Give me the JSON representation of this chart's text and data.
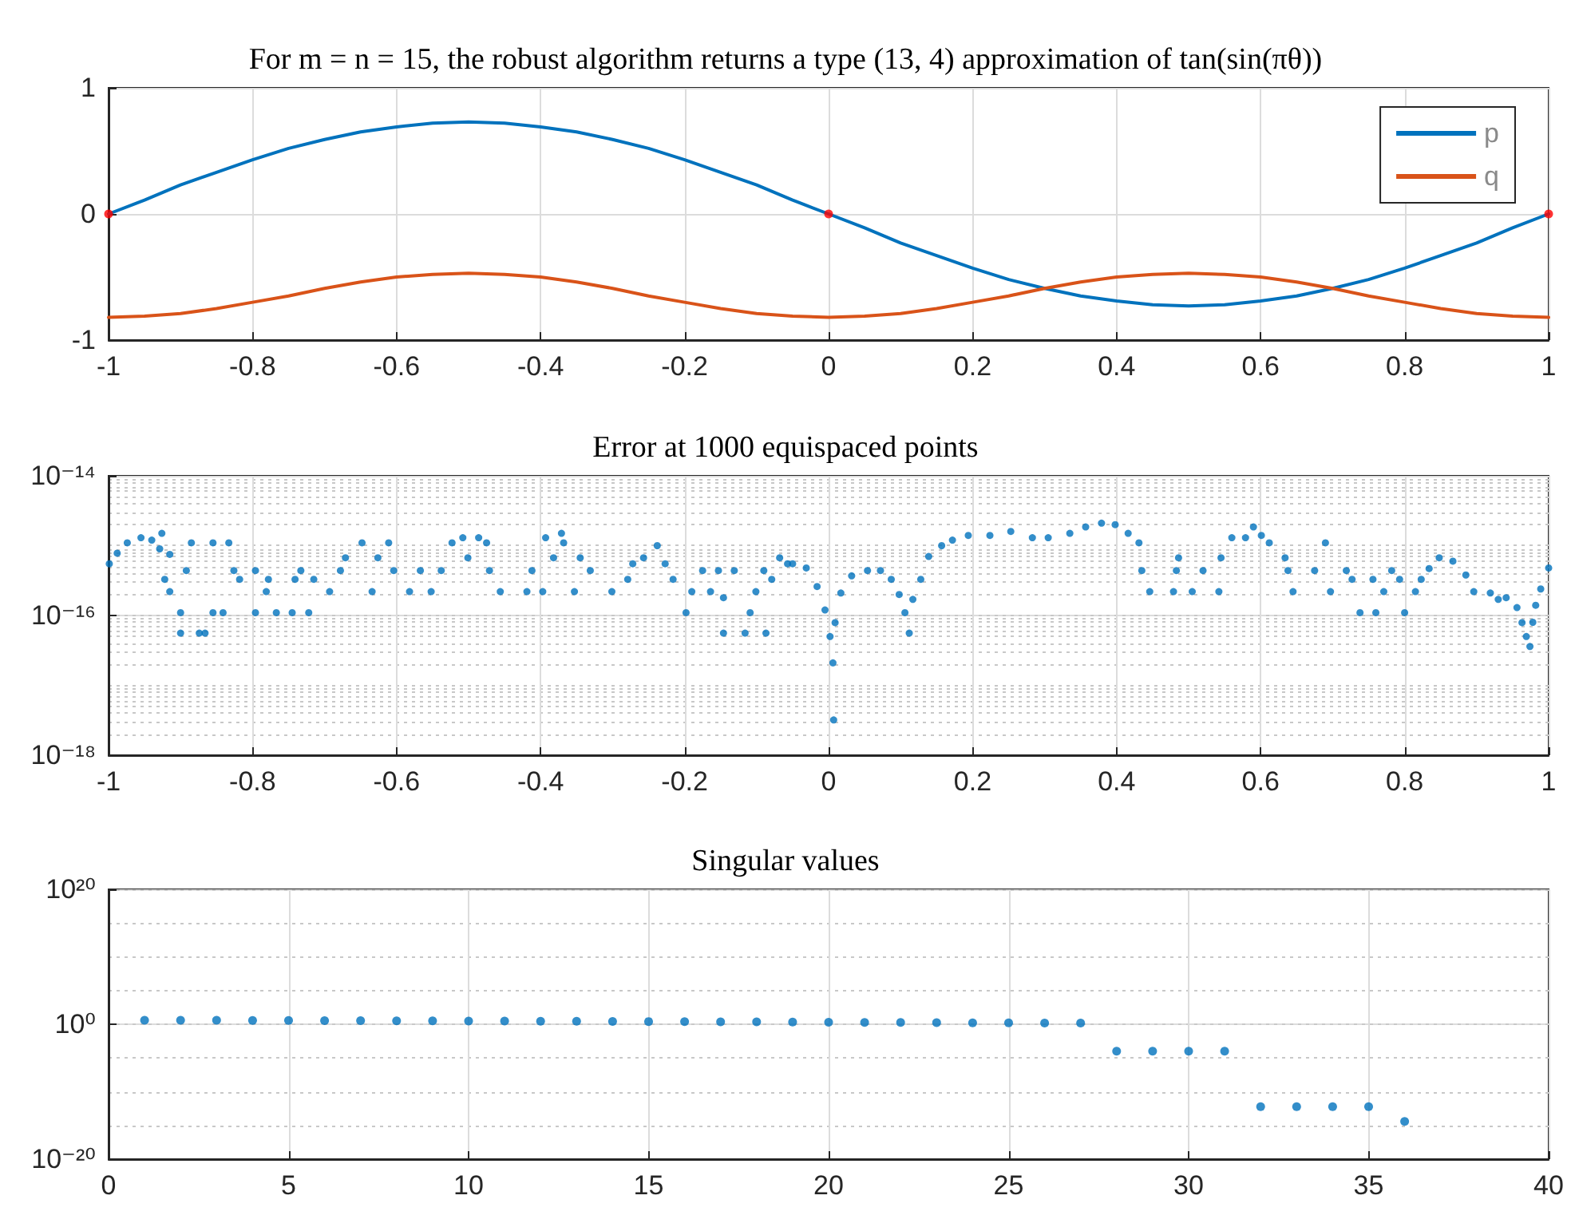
{
  "chart_data": [
    {
      "type": "line",
      "title": "For m = n = 15, the robust algorithm returns a type (13, 4) approximation of tan(sin(πθ))",
      "x": [
        -1,
        -0.95,
        -0.9,
        -0.85,
        -0.8,
        -0.75,
        -0.7,
        -0.65,
        -0.6,
        -0.55,
        -0.5,
        -0.45,
        -0.4,
        -0.35,
        -0.3,
        -0.25,
        -0.2,
        -0.15,
        -0.1,
        -0.05,
        0,
        0.05,
        0.1,
        0.15,
        0.2,
        0.25,
        0.3,
        0.35,
        0.4,
        0.45,
        0.5,
        0.55,
        0.6,
        0.65,
        0.7,
        0.75,
        0.8,
        0.85,
        0.9,
        0.95,
        1
      ],
      "series": [
        {
          "name": "p",
          "color": "#0072bd",
          "values": [
            0,
            0.11,
            0.23,
            0.33,
            0.43,
            0.52,
            0.59,
            0.65,
            0.69,
            0.72,
            0.73,
            0.72,
            0.69,
            0.65,
            0.59,
            0.52,
            0.43,
            0.33,
            0.23,
            0.11,
            0,
            -0.11,
            -0.23,
            -0.33,
            -0.43,
            -0.52,
            -0.59,
            -0.65,
            -0.69,
            -0.72,
            -0.73,
            -0.72,
            -0.69,
            -0.65,
            -0.59,
            -0.52,
            -0.43,
            -0.33,
            -0.23,
            -0.11,
            0
          ]
        },
        {
          "name": "q",
          "color": "#d95319",
          "values": [
            -0.82,
            -0.81,
            -0.79,
            -0.75,
            -0.7,
            -0.65,
            -0.59,
            -0.54,
            -0.5,
            -0.48,
            -0.47,
            -0.48,
            -0.5,
            -0.54,
            -0.59,
            -0.65,
            -0.7,
            -0.75,
            -0.79,
            -0.81,
            -0.82,
            -0.81,
            -0.79,
            -0.75,
            -0.7,
            -0.65,
            -0.59,
            -0.54,
            -0.5,
            -0.48,
            -0.47,
            -0.48,
            -0.5,
            -0.54,
            -0.59,
            -0.65,
            -0.7,
            -0.75,
            -0.79,
            -0.81,
            -0.82
          ]
        },
        {
          "type": "scatter",
          "color": "#ff0000",
          "marker": "circle",
          "x": [
            -1,
            0,
            1
          ],
          "values": [
            0,
            0,
            0
          ]
        }
      ],
      "xlim": [
        -1,
        1
      ],
      "xticks": [
        -1,
        -0.8,
        -0.6,
        -0.4,
        -0.2,
        0,
        0.2,
        0.4,
        0.6,
        0.8,
        1
      ],
      "ylim": [
        -1,
        1
      ],
      "yticks": [
        -1,
        0,
        1
      ],
      "grid": true,
      "legend": "top right",
      "marker": "none",
      "line_style": "solid"
    },
    {
      "type": "scatter",
      "title": "Error at 1000 equispaced points",
      "log": "y",
      "marker": "circle",
      "grid": true,
      "x": [
        -0.999,
        -0.988,
        -0.974,
        -0.955,
        -0.94,
        -0.929,
        -0.926,
        -0.922,
        -0.915,
        -0.915,
        -0.9,
        -0.9,
        -0.892,
        -0.885,
        -0.874,
        -0.866,
        -0.855,
        -0.855,
        -0.841,
        -0.833,
        -0.826,
        -0.818,
        -0.796,
        -0.796,
        -0.781,
        -0.778,
        -0.767,
        -0.745,
        -0.741,
        -0.733,
        -0.722,
        -0.715,
        -0.693,
        -0.678,
        -0.671,
        -0.648,
        -0.634,
        -0.626,
        -0.611,
        -0.604,
        -0.582,
        -0.567,
        -0.552,
        -0.538,
        -0.523,
        -0.508,
        -0.501,
        -0.486,
        -0.475,
        -0.471,
        -0.456,
        -0.419,
        -0.412,
        -0.397,
        -0.393,
        -0.382,
        -0.371,
        -0.368,
        -0.353,
        -0.345,
        -0.331,
        -0.301,
        -0.279,
        -0.272,
        -0.257,
        -0.238,
        -0.227,
        -0.216,
        -0.198,
        -0.19,
        -0.175,
        -0.164,
        -0.153,
        -0.146,
        -0.146,
        -0.131,
        -0.116,
        -0.109,
        -0.101,
        -0.09,
        -0.087,
        -0.079,
        -0.068,
        -0.057,
        -0.05,
        -0.031,
        -0.016,
        -0.005,
        0.002,
        0.006,
        0.007,
        0.009,
        0.017,
        0.032,
        0.054,
        0.072,
        0.087,
        0.098,
        0.106,
        0.112,
        0.117,
        0.128,
        0.139,
        0.157,
        0.172,
        0.194,
        0.224,
        0.253,
        0.283,
        0.305,
        0.335,
        0.357,
        0.379,
        0.398,
        0.416,
        0.431,
        0.435,
        0.446,
        0.479,
        0.483,
        0.486,
        0.505,
        0.52,
        0.542,
        0.545,
        0.56,
        0.579,
        0.59,
        0.601,
        0.612,
        0.634,
        0.638,
        0.645,
        0.675,
        0.69,
        0.697,
        0.719,
        0.727,
        0.738,
        0.756,
        0.76,
        0.771,
        0.782,
        0.793,
        0.8,
        0.815,
        0.823,
        0.834,
        0.848,
        0.867,
        0.885,
        0.896,
        0.919,
        0.93,
        0.941,
        0.956,
        0.963,
        0.969,
        0.974,
        0.978,
        0.982,
        0.989,
        1
      ],
      "series": [
        {
          "color": "#0072bd",
          "values": [
            5.5e-16,
            7.8e-16,
            1.1e-15,
            1.3e-15,
            1.2e-15,
            9e-16,
            1.5e-15,
            3.3e-16,
            7.5e-16,
            2.2e-16,
            1.1e-16,
            5.6e-17,
            4.4e-16,
            1.1e-15,
            5.6e-17,
            5.6e-17,
            1.1e-16,
            1.1e-15,
            1.1e-16,
            1.1e-15,
            4.4e-16,
            3.3e-16,
            4.4e-16,
            1.1e-16,
            2.2e-16,
            3.3e-16,
            1.1e-16,
            1.1e-16,
            3.3e-16,
            4.4e-16,
            1.1e-16,
            3.3e-16,
            2.2e-16,
            4.4e-16,
            6.7e-16,
            1.1e-15,
            2.2e-16,
            6.7e-16,
            1.1e-15,
            4.4e-16,
            2.2e-16,
            4.4e-16,
            2.2e-16,
            4.4e-16,
            1.1e-15,
            1.3e-15,
            6.7e-16,
            1.3e-15,
            1.1e-15,
            4.4e-16,
            2.2e-16,
            2.2e-16,
            4.4e-16,
            2.2e-16,
            1.3e-15,
            6.7e-16,
            1.5e-15,
            1.1e-15,
            2.2e-16,
            6.7e-16,
            4.4e-16,
            2.2e-16,
            3.3e-16,
            5.5e-16,
            6.7e-16,
            1e-15,
            5.5e-16,
            3.3e-16,
            1.1e-16,
            2.2e-16,
            4.4e-16,
            2.2e-16,
            4.4e-16,
            1.8e-16,
            5.6e-17,
            4.4e-16,
            5.6e-17,
            1.1e-16,
            2.2e-16,
            4.4e-16,
            5.6e-17,
            3.3e-16,
            6.7e-16,
            5.5e-16,
            5.5e-16,
            4.8e-16,
            2.6e-16,
            1.2e-16,
            5e-17,
            2.1e-17,
            3.2e-18,
            7.9e-17,
            2.1e-16,
            3.7e-16,
            4.4e-16,
            4.4e-16,
            3.3e-16,
            2e-16,
            1.1e-16,
            5.6e-17,
            1.7e-16,
            3.3e-16,
            7e-16,
            1e-15,
            1.2e-15,
            1.4e-15,
            1.4e-15,
            1.6e-15,
            1.3e-15,
            1.3e-15,
            1.5e-15,
            1.85e-15,
            2.1e-15,
            2e-15,
            1.5e-15,
            1.1e-15,
            4.4e-16,
            2.2e-16,
            2.2e-16,
            4.4e-16,
            6.7e-16,
            2.2e-16,
            4.4e-16,
            2.2e-16,
            6.7e-16,
            1.3e-15,
            1.3e-15,
            1.85e-15,
            1.4e-15,
            1.1e-15,
            6.7e-16,
            4.4e-16,
            2.2e-16,
            4.4e-16,
            1.1e-15,
            2.2e-16,
            4.4e-16,
            3.3e-16,
            1.1e-16,
            3.3e-16,
            1.1e-16,
            2.2e-16,
            4.4e-16,
            3.3e-16,
            1.1e-16,
            2.2e-16,
            3.3e-16,
            4.7e-16,
            6.7e-16,
            6e-16,
            3.8e-16,
            2.2e-16,
            2.1e-16,
            1.7e-16,
            1.8e-16,
            1.3e-16,
            7.9e-17,
            5e-17,
            3.6e-17,
            8e-17,
            1.4e-16,
            2.4e-16,
            4.8e-16
          ]
        }
      ],
      "xlim": [
        -1,
        1
      ],
      "xticks": [
        -1,
        -0.8,
        -0.6,
        -0.4,
        -0.2,
        0,
        0.2,
        0.4,
        0.6,
        0.8,
        1
      ],
      "ylim": [
        1e-18,
        1e-14
      ],
      "yticks": [
        {
          "value": 1e-18,
          "label": "10⁻¹⁸"
        },
        {
          "value": 1e-16,
          "label": "10⁻¹⁶"
        },
        {
          "value": 1e-14,
          "label": "10⁻¹⁴"
        }
      ]
    },
    {
      "type": "scatter",
      "title": "Singular values",
      "log": "y",
      "marker": "circle",
      "grid": true,
      "x": [
        1,
        2,
        3,
        4,
        5,
        6,
        7,
        8,
        9,
        10,
        11,
        12,
        13,
        14,
        15,
        16,
        17,
        18,
        19,
        20,
        21,
        22,
        23,
        24,
        25,
        26,
        27,
        28,
        29,
        30,
        31,
        32,
        33,
        34,
        35,
        36
      ],
      "series": [
        {
          "color": "#0072bd",
          "values": [
            4,
            4,
            3.8,
            3.7,
            3.6,
            3.5,
            3.4,
            3.2,
            3.1,
            3,
            2.9,
            2.8,
            2.7,
            2.6,
            2.5,
            2.4,
            2.3,
            2.2,
            2.1,
            2,
            1.9,
            1.8,
            1.7,
            1.6,
            1.6,
            1.5,
            1.5,
            0.0001,
            0.0001,
            0.0001,
            0.0001,
            6e-13,
            6e-13,
            6e-13,
            6e-13,
            4e-15
          ]
        }
      ],
      "xlim": [
        0,
        40
      ],
      "xticks": [
        0,
        5,
        10,
        15,
        20,
        25,
        30,
        35,
        40
      ],
      "ylim": [
        1e-20,
        1e+20
      ],
      "yticks": [
        {
          "value": 1e-20,
          "label": "10⁻²⁰"
        },
        {
          "value": 1,
          "label": "10⁰"
        },
        {
          "value": 1e+20,
          "label": "10²⁰"
        }
      ]
    }
  ]
}
